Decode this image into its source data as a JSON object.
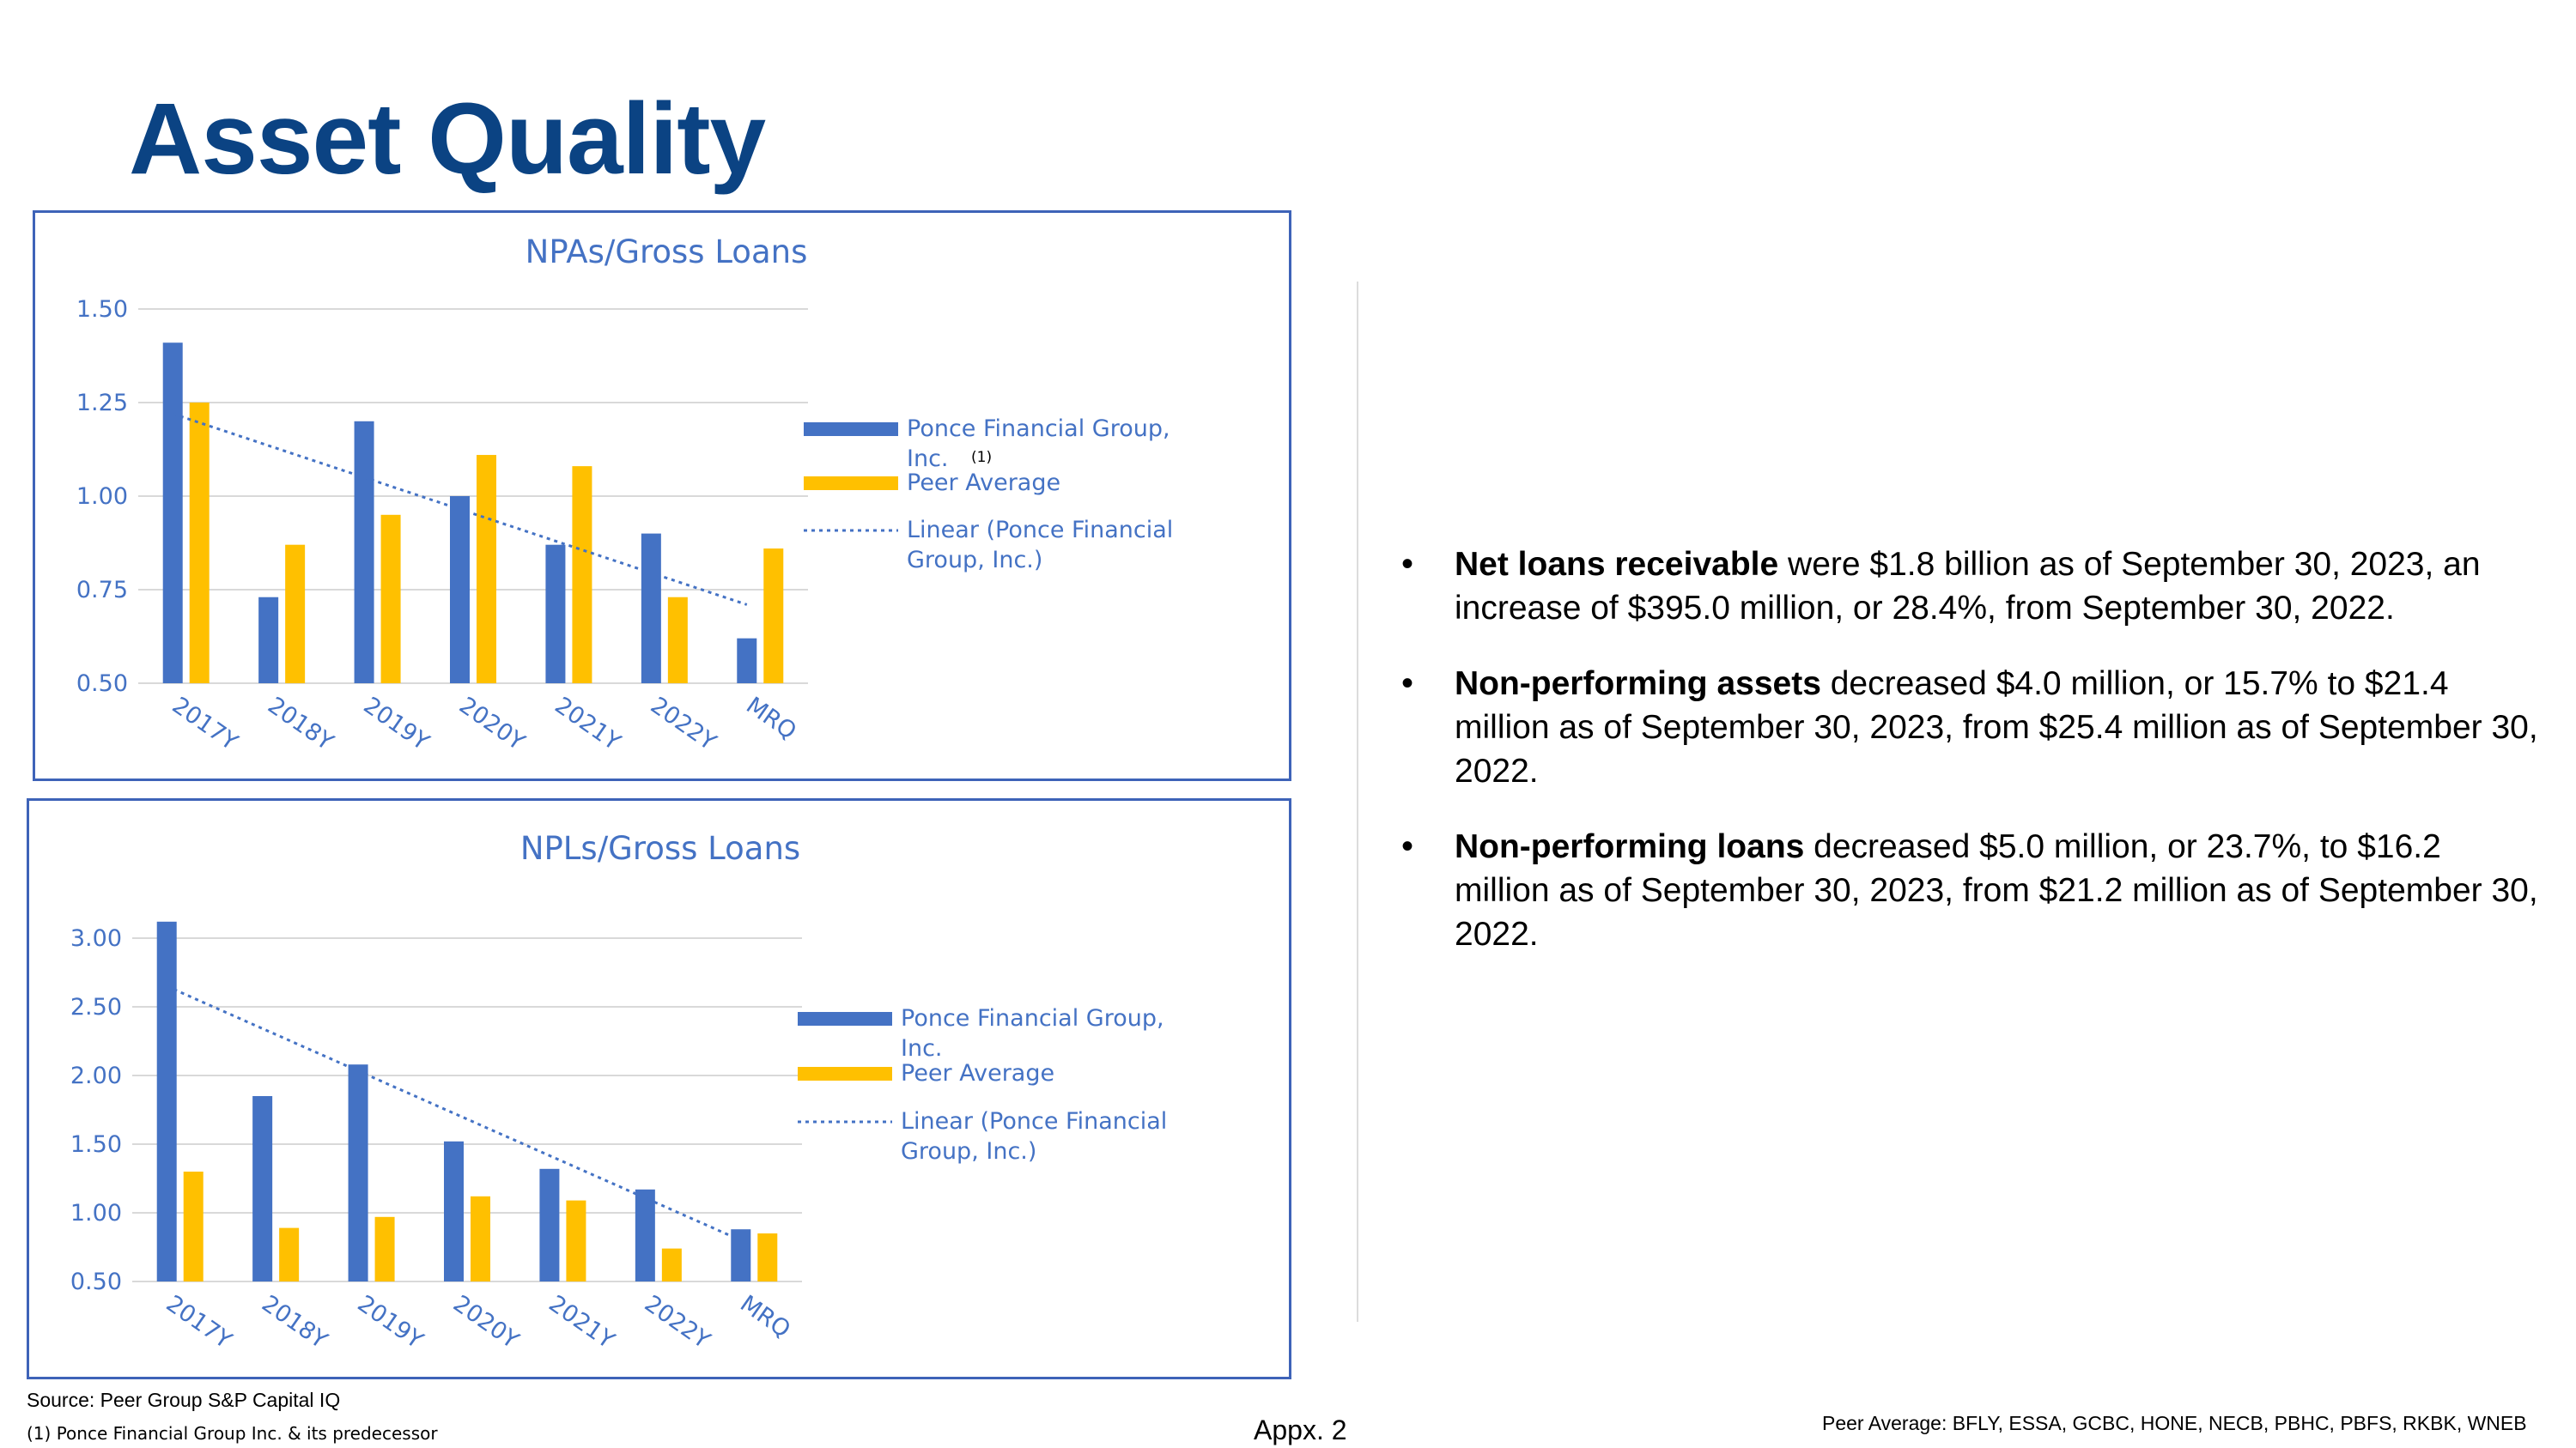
{
  "page": {
    "title": "Asset Quality",
    "source": "Source: Peer Group S&P Capital IQ",
    "footnote": "(1) Ponce Financial Group Inc. & its predecessor",
    "page_label": "Appx. 2",
    "peer_note": "Peer Average: BFLY, ESSA, GCBC, HONE, NECB, PBHC, PBFS, RKBK, WNEB"
  },
  "bullets": [
    {
      "bold": "Net loans receivable",
      "rest": " were $1.8 billion as of September 30, 2023, an increase of $395.0 million, or 28.4%, from September 30, 2022."
    },
    {
      "bold": "Non-performing assets",
      "rest": " decreased $4.0 million, or  15.7% to $21.4 million as of September 30, 2023, from $25.4 million as of September 30, 2022."
    },
    {
      "bold": "Non-performing loans",
      "rest": " decreased $5.0 million, or 23.7%, to $16.2 million as of September 30, 2023, from $21.2 million as of September 30, 2022."
    }
  ],
  "colors": {
    "ponce": "#4472c4",
    "peer": "#ffc000",
    "axis_text": "#4472c4",
    "title_blue": "#0b4383",
    "grid": "#d9d9d9",
    "box_border": "#3e63b8"
  },
  "chart_data": [
    {
      "type": "bar",
      "title": "NPAs/Gross Loans",
      "categories": [
        "2017Y",
        "2018Y",
        "2019Y",
        "2020Y",
        "2021Y",
        "2022Y",
        "MRQ"
      ],
      "ylim": [
        0.5,
        1.5
      ],
      "yticks": [
        "0.50",
        "0.75",
        "1.00",
        "1.25",
        "1.50"
      ],
      "grid": true,
      "legend_position": "right",
      "series": [
        {
          "name": "Ponce Financial Group, Inc.",
          "name_line1": "Ponce Financial Group,",
          "name_line2": "Inc.",
          "footnote_marker": "(1)",
          "values": [
            1.41,
            0.73,
            1.2,
            1.0,
            0.87,
            0.9,
            0.62
          ]
        },
        {
          "name": "Peer Average",
          "values": [
            1.25,
            0.87,
            0.95,
            1.11,
            1.08,
            0.73,
            0.86
          ]
        }
      ],
      "trendline": {
        "name": "Linear (Ponce Financial Group, Inc.)",
        "name_line1": "Linear (Ponce Financial",
        "name_line2": "Group, Inc.)",
        "start": 1.22,
        "end": 0.71
      }
    },
    {
      "type": "bar",
      "title": "NPLs/Gross Loans",
      "categories": [
        "2017Y",
        "2018Y",
        "2019Y",
        "2020Y",
        "2021Y",
        "2022Y",
        "MRQ"
      ],
      "ylim": [
        0.5,
        3.0
      ],
      "yticks": [
        "0.50",
        "1.00",
        "1.50",
        "2.00",
        "2.50",
        "3.00"
      ],
      "grid": true,
      "legend_position": "right",
      "series": [
        {
          "name": "Ponce Financial Group, Inc.",
          "name_line1": "Ponce Financial Group,",
          "name_line2": "Inc.",
          "footnote_marker": "",
          "values": [
            3.12,
            1.85,
            2.08,
            1.52,
            1.32,
            1.17,
            0.88
          ]
        },
        {
          "name": "Peer Average",
          "values": [
            1.3,
            0.89,
            0.97,
            1.12,
            1.09,
            0.74,
            0.85
          ]
        }
      ],
      "trendline": {
        "name": "Linear (Ponce Financial Group, Inc.)",
        "name_line1": "Linear (Ponce Financial",
        "name_line2": "Group, Inc.)",
        "start": 2.65,
        "end": 0.8
      }
    }
  ]
}
